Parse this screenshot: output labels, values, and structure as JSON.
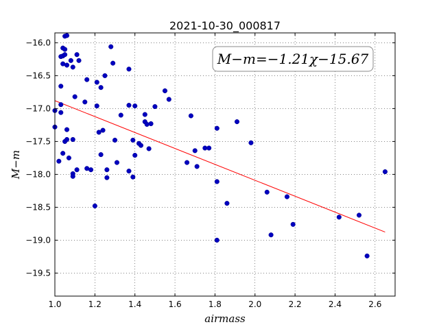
{
  "chart_data": {
    "type": "scatter",
    "title": "2021-10-30_000817",
    "xlabel": "airmass",
    "ylabel": "M−m",
    "xlim": [
      1.0,
      2.7
    ],
    "ylim": [
      -19.85,
      -15.85
    ],
    "y_inverted": true,
    "grid": true,
    "x_ticks": [
      1.0,
      1.2,
      1.4,
      1.6,
      1.8,
      2.0,
      2.2,
      2.4,
      2.6
    ],
    "x_tick_labels": [
      "1.0",
      "1.2",
      "1.4",
      "1.6",
      "1.8",
      "2.0",
      "2.2",
      "2.4",
      "2.6"
    ],
    "y_ticks": [
      -16.0,
      -16.5,
      -17.0,
      -17.5,
      -18.0,
      -18.5,
      -19.0,
      -19.5
    ],
    "y_tick_labels": [
      "−16.0",
      "−16.5",
      "−17.0",
      "−17.5",
      "−18.0",
      "−18.5",
      "−19.0",
      "−19.5"
    ],
    "annotation": "M−m=−1.21χ−15.67",
    "point_color": "#0000bf",
    "fit_color": "#ff0000",
    "fit": {
      "slope": -1.21,
      "intercept": -15.67,
      "x_range": [
        1.0,
        2.65
      ]
    },
    "points": [
      {
        "x": 1.0,
        "y": -17.03
      },
      {
        "x": 1.0,
        "y": -17.28
      },
      {
        "x": 1.02,
        "y": -17.8
      },
      {
        "x": 1.03,
        "y": -16.94
      },
      {
        "x": 1.03,
        "y": -17.06
      },
      {
        "x": 1.03,
        "y": -16.66
      },
      {
        "x": 1.03,
        "y": -16.21
      },
      {
        "x": 1.04,
        "y": -16.2
      },
      {
        "x": 1.04,
        "y": -16.32
      },
      {
        "x": 1.04,
        "y": -16.08
      },
      {
        "x": 1.04,
        "y": -17.68
      },
      {
        "x": 1.05,
        "y": -15.9
      },
      {
        "x": 1.05,
        "y": -16.1
      },
      {
        "x": 1.05,
        "y": -16.18
      },
      {
        "x": 1.05,
        "y": -17.5
      },
      {
        "x": 1.06,
        "y": -15.89
      },
      {
        "x": 1.06,
        "y": -17.47
      },
      {
        "x": 1.06,
        "y": -17.32
      },
      {
        "x": 1.06,
        "y": -16.34
      },
      {
        "x": 1.07,
        "y": -17.75
      },
      {
        "x": 1.08,
        "y": -16.27
      },
      {
        "x": 1.09,
        "y": -16.37
      },
      {
        "x": 1.09,
        "y": -17.47
      },
      {
        "x": 1.09,
        "y": -17.99
      },
      {
        "x": 1.09,
        "y": -18.03
      },
      {
        "x": 1.1,
        "y": -16.82
      },
      {
        "x": 1.11,
        "y": -17.93
      },
      {
        "x": 1.11,
        "y": -16.18
      },
      {
        "x": 1.12,
        "y": -16.27
      },
      {
        "x": 1.15,
        "y": -16.9
      },
      {
        "x": 1.16,
        "y": -16.56
      },
      {
        "x": 1.16,
        "y": -17.91
      },
      {
        "x": 1.18,
        "y": -17.93
      },
      {
        "x": 1.2,
        "y": -18.48
      },
      {
        "x": 1.21,
        "y": -16.6
      },
      {
        "x": 1.21,
        "y": -16.96
      },
      {
        "x": 1.22,
        "y": -17.36
      },
      {
        "x": 1.23,
        "y": -16.68
      },
      {
        "x": 1.23,
        "y": -17.7
      },
      {
        "x": 1.24,
        "y": -17.33
      },
      {
        "x": 1.25,
        "y": -16.5
      },
      {
        "x": 1.26,
        "y": -17.93
      },
      {
        "x": 1.26,
        "y": -18.05
      },
      {
        "x": 1.28,
        "y": -16.06
      },
      {
        "x": 1.29,
        "y": -16.31
      },
      {
        "x": 1.3,
        "y": -17.48
      },
      {
        "x": 1.31,
        "y": -17.82
      },
      {
        "x": 1.33,
        "y": -17.1
      },
      {
        "x": 1.37,
        "y": -16.4
      },
      {
        "x": 1.37,
        "y": -16.95
      },
      {
        "x": 1.37,
        "y": -17.95
      },
      {
        "x": 1.39,
        "y": -17.48
      },
      {
        "x": 1.39,
        "y": -18.04
      },
      {
        "x": 1.4,
        "y": -17.71
      },
      {
        "x": 1.4,
        "y": -16.96
      },
      {
        "x": 1.42,
        "y": -17.53
      },
      {
        "x": 1.43,
        "y": -17.56
      },
      {
        "x": 1.45,
        "y": -17.09
      },
      {
        "x": 1.45,
        "y": -17.2
      },
      {
        "x": 1.46,
        "y": -17.24
      },
      {
        "x": 1.47,
        "y": -17.61
      },
      {
        "x": 1.48,
        "y": -17.23
      },
      {
        "x": 1.5,
        "y": -16.97
      },
      {
        "x": 1.55,
        "y": -16.73
      },
      {
        "x": 1.57,
        "y": -16.86
      },
      {
        "x": 1.66,
        "y": -17.82
      },
      {
        "x": 1.68,
        "y": -17.11
      },
      {
        "x": 1.7,
        "y": -17.64
      },
      {
        "x": 1.71,
        "y": -17.88
      },
      {
        "x": 1.75,
        "y": -17.6
      },
      {
        "x": 1.77,
        "y": -17.6
      },
      {
        "x": 1.81,
        "y": -17.3
      },
      {
        "x": 1.81,
        "y": -18.11
      },
      {
        "x": 1.81,
        "y": -19.0
      },
      {
        "x": 1.86,
        "y": -18.44
      },
      {
        "x": 1.91,
        "y": -17.2
      },
      {
        "x": 1.98,
        "y": -17.52
      },
      {
        "x": 2.06,
        "y": -18.27
      },
      {
        "x": 2.08,
        "y": -18.92
      },
      {
        "x": 2.16,
        "y": -18.34
      },
      {
        "x": 2.19,
        "y": -18.76
      },
      {
        "x": 2.42,
        "y": -18.65
      },
      {
        "x": 2.52,
        "y": -18.62
      },
      {
        "x": 2.56,
        "y": -19.24
      },
      {
        "x": 2.65,
        "y": -17.96
      }
    ]
  }
}
